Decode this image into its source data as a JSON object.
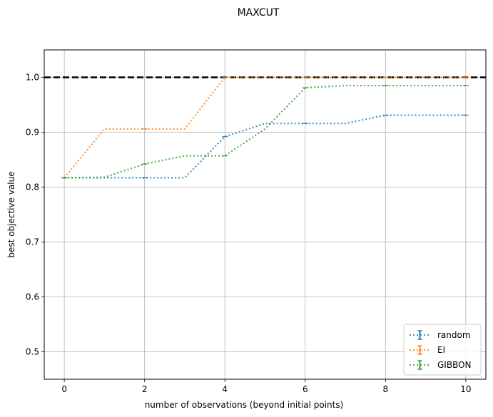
{
  "chart_data": {
    "type": "line",
    "title": "MAXCUT",
    "xlabel": "number of observations (beyond initial points)",
    "ylabel": "best objective value",
    "xlim": [
      -0.5,
      10.5
    ],
    "ylim": [
      0.45,
      1.05
    ],
    "xticks": [
      0,
      2,
      4,
      6,
      8,
      10
    ],
    "yticks": [
      0.5,
      0.6,
      0.7,
      0.8,
      0.9,
      1.0
    ],
    "xtick_labels": [
      "0",
      "2",
      "4",
      "6",
      "8",
      "10"
    ],
    "ytick_labels": [
      "0.5",
      "0.6",
      "0.7",
      "0.8",
      "0.9",
      "1.0"
    ],
    "grid": true,
    "legend_position": "bottom-right",
    "reference_line": {
      "y": 1.0,
      "style": "dashed",
      "color": "#000000"
    },
    "x": [
      0,
      1,
      2,
      3,
      4,
      5,
      6,
      7,
      8,
      9,
      10
    ],
    "series": [
      {
        "name": "random",
        "color": "#1f77b4",
        "values": [
          0.817,
          0.817,
          0.817,
          0.817,
          0.892,
          0.916,
          0.916,
          0.916,
          0.931,
          0.931,
          0.931
        ]
      },
      {
        "name": "EI",
        "color": "#ff7f0e",
        "values": [
          0.817,
          0.906,
          0.906,
          0.906,
          1.0,
          1.0,
          1.0,
          1.0,
          1.0,
          1.0,
          1.0
        ]
      },
      {
        "name": "GIBBON",
        "color": "#2ca02c",
        "values": [
          0.817,
          0.818,
          0.842,
          0.857,
          0.857,
          0.906,
          0.981,
          0.985,
          0.985,
          0.985,
          0.985
        ]
      }
    ]
  }
}
